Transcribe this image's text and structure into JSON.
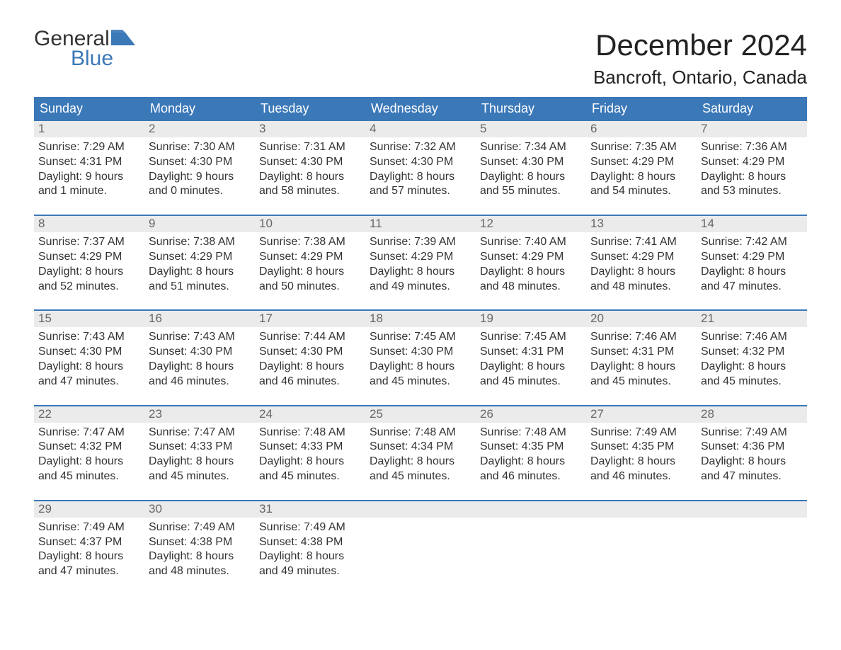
{
  "logo": {
    "word1": "General",
    "word2": "Blue",
    "flag_color": "#3b78b8"
  },
  "title": "December 2024",
  "location": "Bancroft, Ontario, Canada",
  "colors": {
    "header_bg": "#3b78b8",
    "header_text": "#ffffff",
    "daynum_bg": "#ebebeb",
    "daynum_text": "#666666",
    "body_text": "#333333",
    "week_border": "#3b78b8",
    "page_bg": "#ffffff"
  },
  "typography": {
    "title_fontsize": 42,
    "location_fontsize": 26,
    "header_fontsize": 18,
    "daynum_fontsize": 17,
    "body_fontsize": 16,
    "logo_fontsize": 30
  },
  "weekday_labels": [
    "Sunday",
    "Monday",
    "Tuesday",
    "Wednesday",
    "Thursday",
    "Friday",
    "Saturday"
  ],
  "days": [
    {
      "n": 1,
      "sunrise": "7:29 AM",
      "sunset": "4:31 PM",
      "daylight": "9 hours and 1 minute."
    },
    {
      "n": 2,
      "sunrise": "7:30 AM",
      "sunset": "4:30 PM",
      "daylight": "9 hours and 0 minutes."
    },
    {
      "n": 3,
      "sunrise": "7:31 AM",
      "sunset": "4:30 PM",
      "daylight": "8 hours and 58 minutes."
    },
    {
      "n": 4,
      "sunrise": "7:32 AM",
      "sunset": "4:30 PM",
      "daylight": "8 hours and 57 minutes."
    },
    {
      "n": 5,
      "sunrise": "7:34 AM",
      "sunset": "4:30 PM",
      "daylight": "8 hours and 55 minutes."
    },
    {
      "n": 6,
      "sunrise": "7:35 AM",
      "sunset": "4:29 PM",
      "daylight": "8 hours and 54 minutes."
    },
    {
      "n": 7,
      "sunrise": "7:36 AM",
      "sunset": "4:29 PM",
      "daylight": "8 hours and 53 minutes."
    },
    {
      "n": 8,
      "sunrise": "7:37 AM",
      "sunset": "4:29 PM",
      "daylight": "8 hours and 52 minutes."
    },
    {
      "n": 9,
      "sunrise": "7:38 AM",
      "sunset": "4:29 PM",
      "daylight": "8 hours and 51 minutes."
    },
    {
      "n": 10,
      "sunrise": "7:38 AM",
      "sunset": "4:29 PM",
      "daylight": "8 hours and 50 minutes."
    },
    {
      "n": 11,
      "sunrise": "7:39 AM",
      "sunset": "4:29 PM",
      "daylight": "8 hours and 49 minutes."
    },
    {
      "n": 12,
      "sunrise": "7:40 AM",
      "sunset": "4:29 PM",
      "daylight": "8 hours and 48 minutes."
    },
    {
      "n": 13,
      "sunrise": "7:41 AM",
      "sunset": "4:29 PM",
      "daylight": "8 hours and 48 minutes."
    },
    {
      "n": 14,
      "sunrise": "7:42 AM",
      "sunset": "4:29 PM",
      "daylight": "8 hours and 47 minutes."
    },
    {
      "n": 15,
      "sunrise": "7:43 AM",
      "sunset": "4:30 PM",
      "daylight": "8 hours and 47 minutes."
    },
    {
      "n": 16,
      "sunrise": "7:43 AM",
      "sunset": "4:30 PM",
      "daylight": "8 hours and 46 minutes."
    },
    {
      "n": 17,
      "sunrise": "7:44 AM",
      "sunset": "4:30 PM",
      "daylight": "8 hours and 46 minutes."
    },
    {
      "n": 18,
      "sunrise": "7:45 AM",
      "sunset": "4:30 PM",
      "daylight": "8 hours and 45 minutes."
    },
    {
      "n": 19,
      "sunrise": "7:45 AM",
      "sunset": "4:31 PM",
      "daylight": "8 hours and 45 minutes."
    },
    {
      "n": 20,
      "sunrise": "7:46 AM",
      "sunset": "4:31 PM",
      "daylight": "8 hours and 45 minutes."
    },
    {
      "n": 21,
      "sunrise": "7:46 AM",
      "sunset": "4:32 PM",
      "daylight": "8 hours and 45 minutes."
    },
    {
      "n": 22,
      "sunrise": "7:47 AM",
      "sunset": "4:32 PM",
      "daylight": "8 hours and 45 minutes."
    },
    {
      "n": 23,
      "sunrise": "7:47 AM",
      "sunset": "4:33 PM",
      "daylight": "8 hours and 45 minutes."
    },
    {
      "n": 24,
      "sunrise": "7:48 AM",
      "sunset": "4:33 PM",
      "daylight": "8 hours and 45 minutes."
    },
    {
      "n": 25,
      "sunrise": "7:48 AM",
      "sunset": "4:34 PM",
      "daylight": "8 hours and 45 minutes."
    },
    {
      "n": 26,
      "sunrise": "7:48 AM",
      "sunset": "4:35 PM",
      "daylight": "8 hours and 46 minutes."
    },
    {
      "n": 27,
      "sunrise": "7:49 AM",
      "sunset": "4:35 PM",
      "daylight": "8 hours and 46 minutes."
    },
    {
      "n": 28,
      "sunrise": "7:49 AM",
      "sunset": "4:36 PM",
      "daylight": "8 hours and 47 minutes."
    },
    {
      "n": 29,
      "sunrise": "7:49 AM",
      "sunset": "4:37 PM",
      "daylight": "8 hours and 47 minutes."
    },
    {
      "n": 30,
      "sunrise": "7:49 AM",
      "sunset": "4:38 PM",
      "daylight": "8 hours and 48 minutes."
    },
    {
      "n": 31,
      "sunrise": "7:49 AM",
      "sunset": "4:38 PM",
      "daylight": "8 hours and 49 minutes."
    }
  ],
  "labels": {
    "sunrise": "Sunrise:",
    "sunset": "Sunset:",
    "daylight": "Daylight:"
  }
}
